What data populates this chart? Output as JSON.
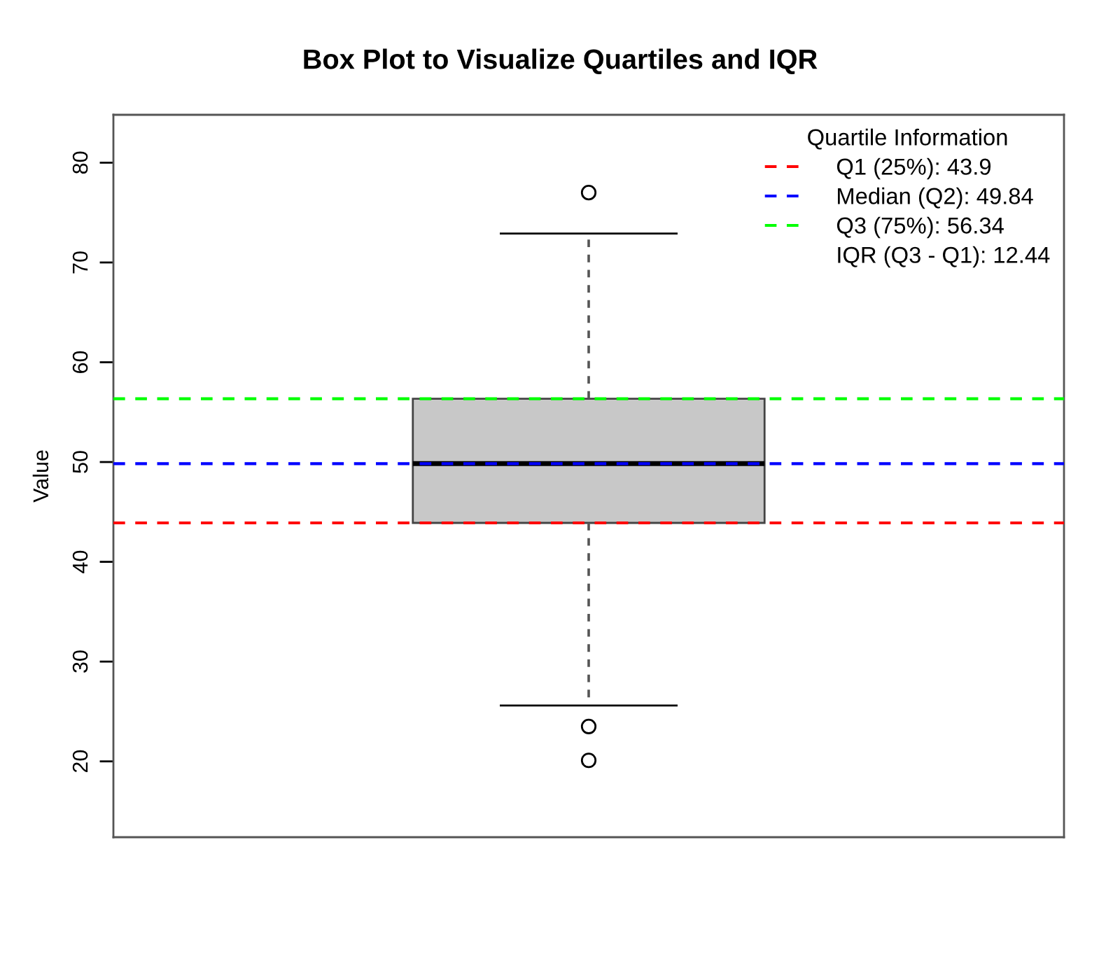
{
  "chart_data": {
    "type": "box",
    "title": "Box Plot to Visualize Quartiles and IQR",
    "ylabel": "Value",
    "categories": [
      null
    ],
    "boxes": [
      {
        "low": 25.6,
        "q1": 43.9,
        "median": 49.84,
        "q3": 56.34,
        "high": 72.9,
        "outliers": [
          77.0,
          23.5,
          20.1
        ]
      }
    ],
    "color": "#c8c8c8",
    "ylim": [
      12.4,
      84.8
    ],
    "yticks": [
      20,
      30,
      40,
      50,
      60,
      70,
      80
    ],
    "ref_lines": [
      {
        "axis": "y",
        "value": 43.9,
        "label": "Q1 (25%): 43.9",
        "color": "#ff0000",
        "line_style": "dashed"
      },
      {
        "axis": "y",
        "value": 49.84,
        "label": "Median (Q2): 49.84",
        "color": "#0000ff",
        "line_style": "dashed"
      },
      {
        "axis": "y",
        "value": 56.34,
        "label": "Q3 (75%): 56.34",
        "color": "#00ff00",
        "line_style": "dashed"
      }
    ],
    "annotations": [
      "IQR (Q3 - Q1): 12.44"
    ],
    "legend_title": "Quartile Information",
    "legend": "top right",
    "tick_labels": "y"
  }
}
